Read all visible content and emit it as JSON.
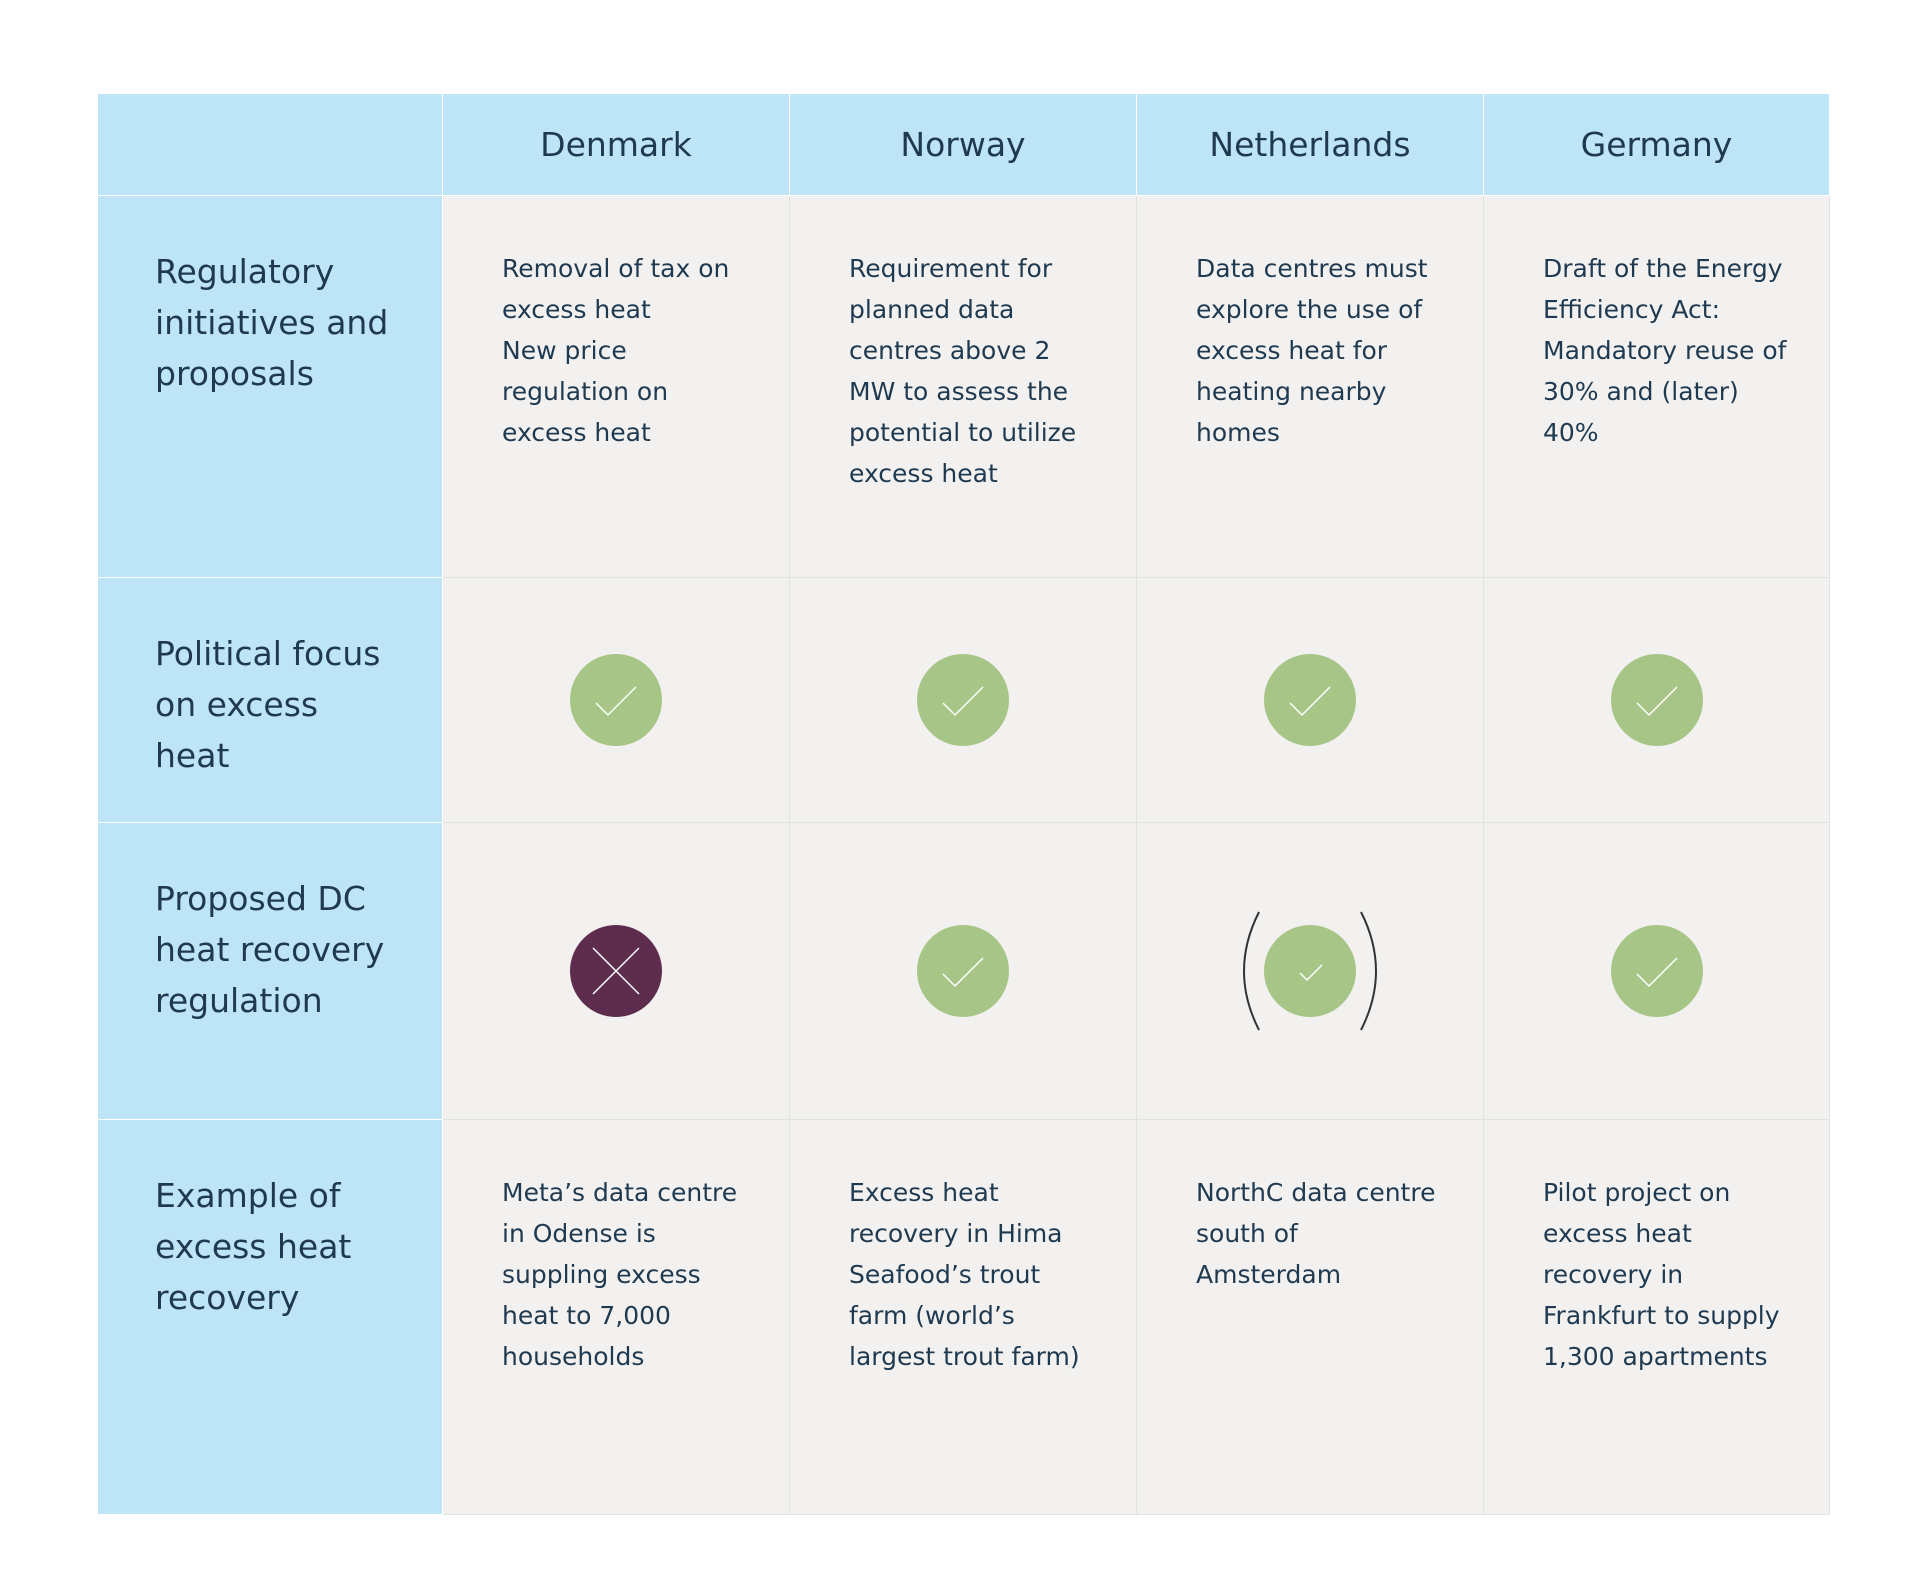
{
  "table": {
    "columns": [
      "Denmark",
      "Norway",
      "Netherlands",
      "Germany"
    ],
    "rows": [
      {
        "label": "Regulatory initiatives and proposals",
        "cells": [
          {
            "text": [
              "Removal of tax on excess heat",
              "New price regulation on excess heat"
            ]
          },
          {
            "text": [
              "Requirement for planned data centres above 2 MW to assess the potential to utilize excess heat"
            ]
          },
          {
            "text": [
              "Data centres must explore the use of excess heat for heating nearby homes"
            ]
          },
          {
            "text": [
              "Draft of the Energy Efficiency Act: Mandatory reuse of 30% and (later) 40%"
            ]
          }
        ]
      },
      {
        "label": "Political focus on excess heat",
        "cells": [
          {
            "status": "yes"
          },
          {
            "status": "yes"
          },
          {
            "status": "yes"
          },
          {
            "status": "yes"
          }
        ]
      },
      {
        "label": "Proposed DC heat recovery regulation",
        "cells": [
          {
            "status": "no"
          },
          {
            "status": "yes"
          },
          {
            "status": "partial"
          },
          {
            "status": "yes"
          }
        ]
      },
      {
        "label": "Example of excess heat recovery",
        "cells": [
          {
            "text": [
              "Meta’s data centre in Odense is suppling excess heat to 7,000 households"
            ]
          },
          {
            "text": [
              "Excess heat recovery in Hima Seafood’s trout farm (world’s largest trout farm)"
            ]
          },
          {
            "text": [
              "NorthC data centre south of Amsterdam"
            ]
          },
          {
            "text": [
              "Pilot project on excess heat recovery in Frankfurt to supply 1,300 apartments"
            ]
          }
        ]
      }
    ]
  }
}
